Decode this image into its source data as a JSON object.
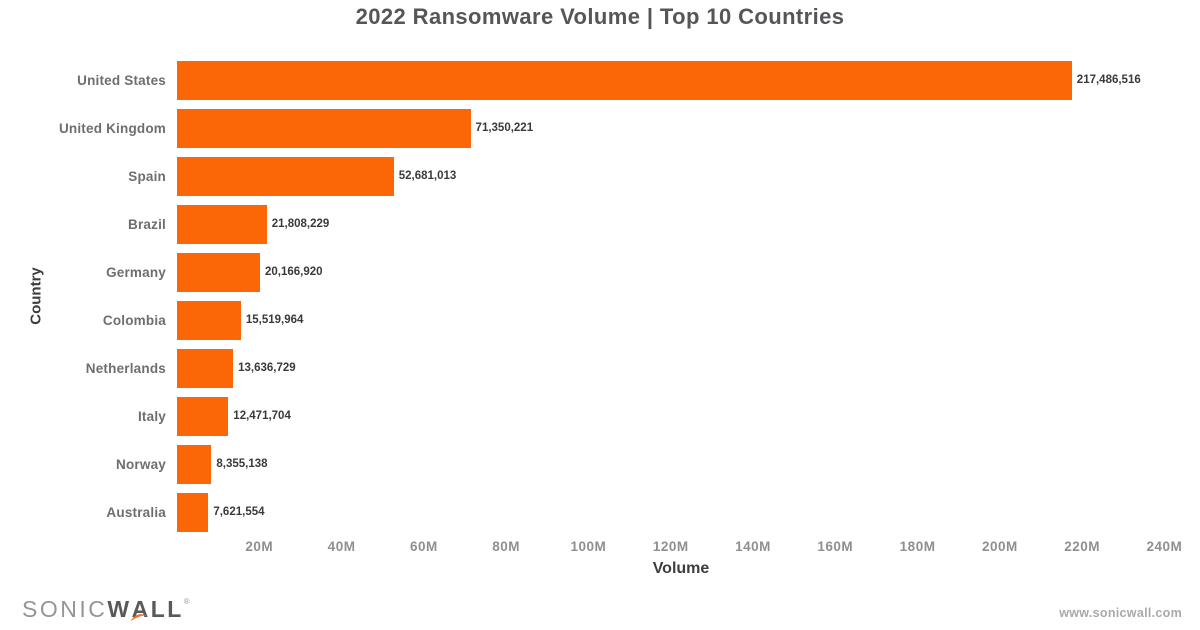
{
  "title": "2022 Ransomware Volume | Top 10 Countries",
  "chart_data": {
    "type": "bar",
    "orientation": "horizontal",
    "title": "2022 Ransomware Volume | Top 10 Countries",
    "xlabel": "Volume",
    "ylabel": "Country",
    "categories": [
      "United States",
      "United Kingdom",
      "Spain",
      "Brazil",
      "Germany",
      "Colombia",
      "Netherlands",
      "Italy",
      "Norway",
      "Australia"
    ],
    "values": [
      217486516,
      71350221,
      52681013,
      21808229,
      20166920,
      15519964,
      13636729,
      12471704,
      8355138,
      7621554
    ],
    "value_labels": [
      "217,486,516",
      "71,350,221",
      "52,681,013",
      "21,808,229",
      "20,166,920",
      "15,519,964",
      "13,636,729",
      "12,471,704",
      "8,355,138",
      "7,621,554"
    ],
    "xlim": [
      0,
      245000000
    ],
    "x_ticks": [
      {
        "label": "20M",
        "value": 20000000
      },
      {
        "label": "40M",
        "value": 40000000
      },
      {
        "label": "60M",
        "value": 60000000
      },
      {
        "label": "80M",
        "value": 80000000
      },
      {
        "label": "100M",
        "value": 100000000
      },
      {
        "label": "120M",
        "value": 120000000
      },
      {
        "label": "140M",
        "value": 140000000
      },
      {
        "label": "160M",
        "value": 160000000
      },
      {
        "label": "180M",
        "value": 180000000
      },
      {
        "label": "200M",
        "value": 200000000
      },
      {
        "label": "220M",
        "value": 220000000
      },
      {
        "label": "240M",
        "value": 240000000
      }
    ],
    "grid": false,
    "legend": null,
    "bar_color": "#fb6606"
  },
  "footer": {
    "logo": {
      "sonic": "SONIC",
      "w": "W",
      "a": "A",
      "ll": "LL",
      "mark": "®"
    },
    "website": "www.sonicwall.com",
    "swoosh_color": "#f36f21"
  },
  "colors": {
    "bar": "#fb6606",
    "title_text": "#55565a",
    "axis_title_text": "#3d3d3d",
    "category_text": "#6e6e6e",
    "value_text": "#3a3a3a",
    "tick_text": "#8f8f8f"
  }
}
